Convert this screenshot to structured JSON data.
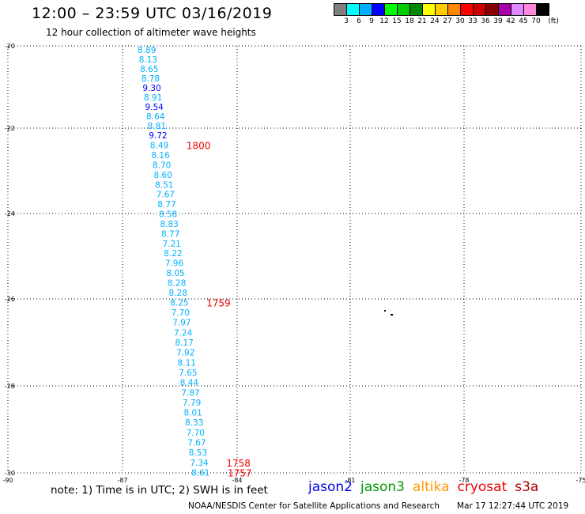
{
  "header": {
    "title": "12:00 – 23:59 UTC 03/16/2019",
    "subtitle": "12 hour collection of altimeter wave heights"
  },
  "colorbar": {
    "colors": [
      "#808080",
      "#00ffff",
      "#00b0ff",
      "#0000ff",
      "#00ff00",
      "#00cc00",
      "#008800",
      "#ffff00",
      "#ffcc00",
      "#ff8800",
      "#ff0000",
      "#cc0000",
      "#880000",
      "#aa00aa",
      "#dd88ff",
      "#ff88dd",
      "#000000"
    ],
    "labels": [
      "3",
      "6",
      "9",
      "12",
      "15",
      "18",
      "21",
      "24",
      "27",
      "30",
      "33",
      "36",
      "39",
      "42",
      "45",
      "70",
      "(ft)"
    ]
  },
  "map": {
    "lon_ticks": [
      "-90",
      "-87",
      "-84",
      "-81",
      "-78",
      "-75"
    ],
    "lat_ticks": [
      "-20",
      "-22",
      "-24",
      "-26",
      "-28",
      "-30"
    ],
    "swh_colors": {
      "9": "#00b0ff",
      "12": "#0000ff"
    },
    "track": [
      {
        "lat": -20.1,
        "value": "8.89"
      },
      {
        "lat": -20.33,
        "value": "8.13"
      },
      {
        "lat": -20.56,
        "value": "8.65"
      },
      {
        "lat": -20.79,
        "value": "8.78"
      },
      {
        "lat": -21.02,
        "value": "9.30"
      },
      {
        "lat": -21.25,
        "value": "8.91"
      },
      {
        "lat": -21.48,
        "value": "9.54"
      },
      {
        "lat": -21.71,
        "value": "8.64"
      },
      {
        "lat": -21.94,
        "value": "8.81"
      },
      {
        "lat": -22.17,
        "value": "9.72"
      },
      {
        "lat": -22.4,
        "value": "8.49"
      },
      {
        "lat": -22.63,
        "value": "8.16"
      },
      {
        "lat": -22.86,
        "value": "8.70"
      },
      {
        "lat": -23.09,
        "value": "8.60"
      },
      {
        "lat": -23.32,
        "value": "8.51"
      },
      {
        "lat": -23.55,
        "value": "7.67"
      },
      {
        "lat": -23.78,
        "value": "8.77"
      },
      {
        "lat": -24.01,
        "value": "8.58"
      },
      {
        "lat": -24.24,
        "value": "8.83"
      },
      {
        "lat": -24.47,
        "value": "8.77"
      },
      {
        "lat": -24.7,
        "value": "7.21"
      },
      {
        "lat": -24.93,
        "value": "8.22"
      },
      {
        "lat": -25.16,
        "value": "7.96"
      },
      {
        "lat": -25.39,
        "value": "8.05"
      },
      {
        "lat": -25.62,
        "value": "8.28"
      },
      {
        "lat": -25.85,
        "value": "8.28"
      },
      {
        "lat": -26.08,
        "value": "8.25"
      },
      {
        "lat": -26.31,
        "value": "7.70"
      },
      {
        "lat": -26.54,
        "value": "7.97"
      },
      {
        "lat": -26.77,
        "value": "7.24"
      },
      {
        "lat": -27.0,
        "value": "8.17"
      },
      {
        "lat": -27.23,
        "value": "7.92"
      },
      {
        "lat": -27.46,
        "value": "8.11"
      },
      {
        "lat": -27.69,
        "value": "7.65"
      },
      {
        "lat": -27.92,
        "value": "8.44"
      },
      {
        "lat": -28.15,
        "value": "7.87"
      },
      {
        "lat": -28.38,
        "value": "7.79"
      },
      {
        "lat": -28.61,
        "value": "8.01"
      },
      {
        "lat": -28.84,
        "value": "8.33"
      },
      {
        "lat": -29.07,
        "value": "7.70"
      },
      {
        "lat": -29.3,
        "value": "7.67"
      },
      {
        "lat": -29.53,
        "value": "8.53"
      },
      {
        "lat": -29.76,
        "value": "7.34"
      },
      {
        "lat": -29.99,
        "value": "8.61"
      }
    ],
    "times": [
      {
        "label": "1800",
        "at_index": 10
      },
      {
        "label": "1759",
        "at_index": 26
      },
      {
        "label": "1758",
        "at_index": 42
      },
      {
        "label": "1757",
        "at_index": 43
      }
    ],
    "time_color": "#ee0000"
  },
  "footer": {
    "note": "note: 1) Time is in UTC; 2) SWH is in feet",
    "legend": [
      {
        "name": "jason2",
        "color": "#0000ee"
      },
      {
        "name": "jason3",
        "color": "#009900"
      },
      {
        "name": "altika",
        "color": "#ff9900"
      },
      {
        "name": "cryosat",
        "color": "#ee0000"
      },
      {
        "name": "s3a",
        "color": "#aa0000"
      }
    ],
    "credit": "NOAA/NESDIS Center for Satellite Applications and Research",
    "timestamp": "Mar 17 12:27:44 UTC 2019"
  }
}
